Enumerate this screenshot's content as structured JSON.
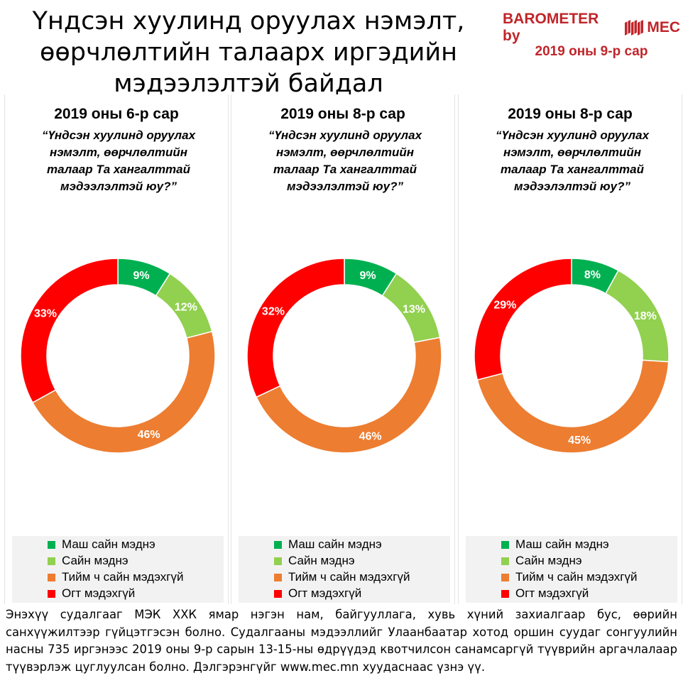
{
  "header": {
    "title_lines": [
      "Үндсэн хуулинд оруулах нэмэлт,",
      "өөрчлөлтийн талаарх иргэдийн",
      "мэдээлэлтэй байдал"
    ],
    "brand": "BAROMETER by",
    "brand_suffix": "MEC",
    "period": "2019 оны 9-р сар"
  },
  "colors": {
    "dark_green": "#00b050",
    "light_green": "#92d050",
    "orange": "#ed7d31",
    "red": "#ff0000",
    "brand_red": "#c0252a"
  },
  "legend_labels": [
    "Маш сайн мэднэ",
    "Сайн мэднэ",
    "Тийм ч сайн мэдэхгүй",
    "Огт мэдэхгүй"
  ],
  "chart_data": [
    {
      "type": "pie",
      "title": "2019 оны 6-р сар",
      "subtitle": "“Үндсэн хуулинд оруулах нэмэлт, өөрчлөлтийн талаар Та хангалттай мэдээлэлтэй юу?”",
      "categories": [
        "Маш сайн мэднэ",
        "Сайн мэднэ",
        "Тийм ч сайн мэдэхгүй",
        "Огт мэдэхгүй"
      ],
      "values": [
        9,
        12,
        46,
        33
      ],
      "labels": [
        "9%",
        "12%",
        "46%",
        "33%"
      ],
      "legend": "bottom"
    },
    {
      "type": "pie",
      "title": "2019 оны 8-р сар",
      "subtitle": "“Үндсэн хуулинд оруулах нэмэлт, өөрчлөлтийн талаар Та хангалттай мэдээлэлтэй юу?”",
      "categories": [
        "Маш сайн мэднэ",
        "Сайн мэднэ",
        "Тийм ч сайн мэдэхгүй",
        "Огт мэдэхгүй"
      ],
      "values": [
        9,
        13,
        46,
        32
      ],
      "labels": [
        "9%",
        "13%",
        "46%",
        "32%"
      ],
      "legend": "bottom"
    },
    {
      "type": "pie",
      "title": "2019 оны 8-р сар",
      "subtitle": "“Үндсэн хуулинд оруулах нэмэлт, өөрчлөлтийн талаар Та хангалттай мэдээлэлтэй юу?”",
      "categories": [
        "Маш сайн мэднэ",
        "Сайн мэднэ",
        "Тийм ч сайн мэдэхгүй",
        "Огт мэдэхгүй"
      ],
      "values": [
        8,
        18,
        45,
        29
      ],
      "labels": [
        "8%",
        "18%",
        "45%",
        "29%"
      ],
      "legend": "bottom"
    }
  ],
  "footer": "Энэхүү судалгааг МЭК ХХК ямар нэгэн нам, байгууллага, хувь хүний захиалгаар бус, өөрийн санхүүжилтээр гүйцэтгэсэн болно. Судалгааны мэдээллийг Улаанбаатар хотод оршин суудаг сонгуулийн насны 735 иргэнээс 2019 оны 9-р сарын 13-15-ны өдрүүдэд квотчилсон санамсаргүй түүврийн аргачлалаар түүвэрлэж цуглуулсан болно. Дэлгэрэнгүйг www.mec.mn хуудаснаас үзнэ үү."
}
